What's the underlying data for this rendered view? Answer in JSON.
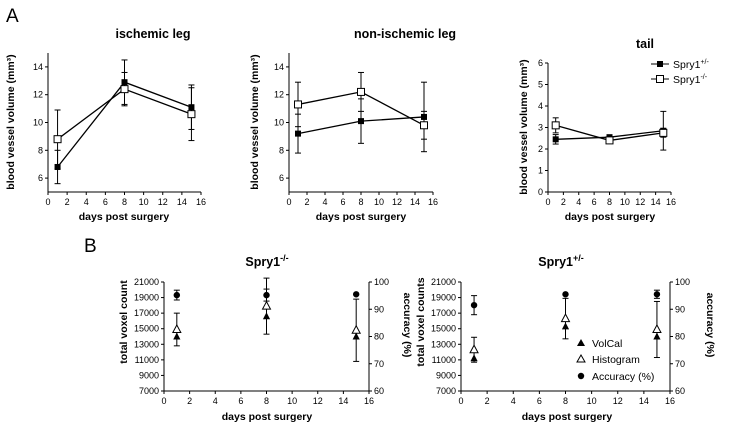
{
  "panel_labels": [
    "A",
    "B"
  ],
  "chart_data": [
    {
      "type": "line",
      "title": "ischemic leg",
      "xlabel": "days post surgery",
      "ylabel": "blood vessel volume (mm³)",
      "xlim": [
        0,
        16
      ],
      "ylim": [
        5,
        15
      ],
      "xticks": [
        0,
        2,
        4,
        6,
        8,
        10,
        12,
        14,
        16
      ],
      "yticks": [
        6,
        8,
        10,
        12,
        14
      ],
      "series": [
        {
          "name": "Spry1+/-",
          "marker": "filled-square",
          "x": [
            1,
            8,
            15
          ],
          "y": [
            6.8,
            12.9,
            11.1
          ],
          "err": [
            1.2,
            1.6,
            1.6
          ]
        },
        {
          "name": "Spry1-/-",
          "marker": "open-square",
          "x": [
            1,
            8,
            15
          ],
          "y": [
            8.8,
            12.4,
            10.6
          ],
          "err": [
            2.1,
            1.2,
            1.9
          ]
        }
      ]
    },
    {
      "type": "line",
      "title": "non-ischemic leg",
      "xlabel": "days post surgery",
      "ylabel": "blood vessel volume (mm³)",
      "xlim": [
        0,
        16
      ],
      "ylim": [
        5,
        15
      ],
      "xticks": [
        0,
        2,
        4,
        6,
        8,
        10,
        12,
        14,
        16
      ],
      "yticks": [
        6,
        8,
        10,
        12,
        14
      ],
      "series": [
        {
          "name": "Spry1+/-",
          "marker": "filled-square",
          "x": [
            1,
            8,
            15
          ],
          "y": [
            9.2,
            10.1,
            10.4
          ],
          "err": [
            1.4,
            1.6,
            2.5
          ]
        },
        {
          "name": "Spry1-/-",
          "marker": "open-square",
          "x": [
            1,
            8,
            15
          ],
          "y": [
            11.3,
            12.2,
            9.8
          ],
          "err": [
            1.6,
            1.4,
            1.0
          ]
        }
      ]
    },
    {
      "type": "line",
      "title": "tail",
      "xlabel": "days post surgery",
      "ylabel": "blood vessel volume (mm³)",
      "xlim": [
        0,
        16
      ],
      "ylim": [
        0,
        6
      ],
      "xticks": [
        0,
        2,
        4,
        6,
        8,
        10,
        12,
        14,
        16
      ],
      "yticks": [
        0,
        1,
        2,
        3,
        4,
        5,
        6
      ],
      "legend": {
        "position": "top-right",
        "entries": [
          "Spry1+/-",
          "Spry1-/-"
        ]
      },
      "series": [
        {
          "name": "Spry1+/-",
          "marker": "filled-square",
          "x": [
            1,
            8,
            15
          ],
          "y": [
            2.45,
            2.55,
            2.85
          ],
          "err": [
            0.22,
            0.1,
            0.9
          ]
        },
        {
          "name": "Spry1-/-",
          "marker": "open-square",
          "x": [
            1,
            8,
            15
          ],
          "y": [
            3.1,
            2.4,
            2.75
          ],
          "err": [
            0.35,
            0.08,
            0.2
          ]
        }
      ]
    },
    {
      "type": "scatter",
      "title": "Spry1-/-",
      "xlabel": "days post surgery",
      "ylabel": "total voxel count",
      "y2label": "accuracy (%)",
      "xlim": [
        0,
        16
      ],
      "ylim": [
        7000,
        21000
      ],
      "y2lim": [
        60,
        100
      ],
      "xticks": [
        0,
        2,
        4,
        6,
        8,
        10,
        12,
        14,
        16
      ],
      "yticks": [
        7000,
        9000,
        11000,
        13000,
        15000,
        17000,
        19000,
        21000
      ],
      "y2ticks": [
        60,
        70,
        80,
        90,
        100
      ],
      "series": [
        {
          "name": "VolCal",
          "axis": "left",
          "marker": "filled-triangle",
          "x": [
            1,
            8,
            15
          ],
          "y": [
            14000,
            16600,
            14000
          ],
          "err": [
            0,
            0,
            0
          ]
        },
        {
          "name": "Histogram",
          "axis": "left",
          "marker": "open-triangle",
          "x": [
            1,
            8,
            15
          ],
          "y": [
            14900,
            17900,
            14800
          ],
          "err": [
            2100,
            3600,
            4000
          ]
        },
        {
          "name": "Accuracy (%)",
          "axis": "right",
          "marker": "filled-circle",
          "x": [
            1,
            8,
            15
          ],
          "y": [
            95.2,
            95.2,
            95.5
          ],
          "err": [
            1.8,
            2.2,
            0
          ]
        }
      ]
    },
    {
      "type": "scatter",
      "title": "Spry1+/-",
      "xlabel": "days post surgery",
      "ylabel": "total voxel counts",
      "y2label": "accuracy (%)",
      "xlim": [
        0,
        16
      ],
      "ylim": [
        7000,
        21000
      ],
      "y2lim": [
        60,
        100
      ],
      "xticks": [
        0,
        2,
        4,
        6,
        8,
        10,
        12,
        14,
        16
      ],
      "yticks": [
        7000,
        9000,
        11000,
        13000,
        15000,
        17000,
        19000,
        21000
      ],
      "y2ticks": [
        60,
        70,
        80,
        90,
        100
      ],
      "legend": {
        "position": "bottom-right",
        "entries": [
          "VolCal",
          "Histogram",
          "Accuracy (%)"
        ]
      },
      "series": [
        {
          "name": "VolCal",
          "axis": "left",
          "marker": "filled-triangle",
          "x": [
            1,
            8,
            15
          ],
          "y": [
            11200,
            15300,
            14000
          ],
          "err": [
            0,
            0,
            0
          ]
        },
        {
          "name": "Histogram",
          "axis": "left",
          "marker": "open-triangle",
          "x": [
            1,
            8,
            15
          ],
          "y": [
            12300,
            16300,
            14900
          ],
          "err": [
            1600,
            2600,
            3600
          ]
        },
        {
          "name": "Accuracy (%)",
          "axis": "right",
          "marker": "filled-circle",
          "x": [
            1,
            8,
            15
          ],
          "y": [
            91.5,
            95.5,
            95.5
          ],
          "err": [
            3.5,
            0,
            1.5
          ]
        }
      ]
    }
  ]
}
